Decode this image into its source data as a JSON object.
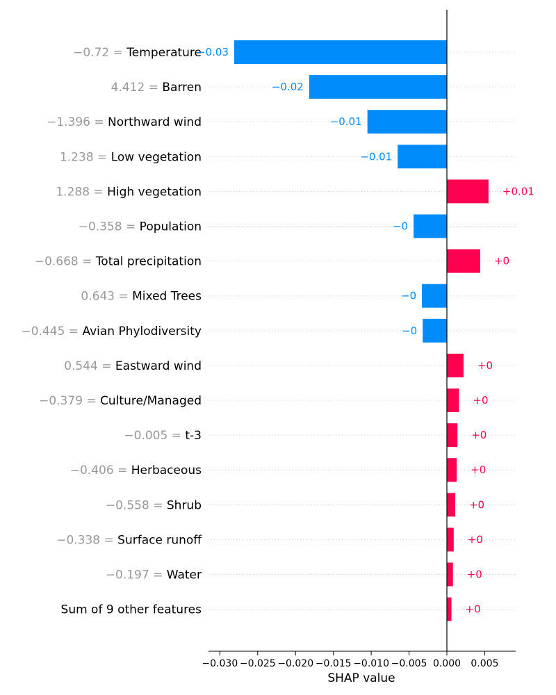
{
  "chart_data": {
    "type": "bar",
    "orientation": "horizontal",
    "xlabel": "SHAP value",
    "xlim": [
      -0.0315,
      0.0092
    ],
    "xticks": [
      -0.03,
      -0.025,
      -0.02,
      -0.015,
      -0.01,
      -0.005,
      0.0,
      0.005
    ],
    "xtick_labels": [
      "−0.030",
      "−0.025",
      "−0.020",
      "−0.015",
      "−0.010",
      "−0.005",
      "0.000",
      "0.005"
    ],
    "grid": "horizontal dotted row guides",
    "zero_line": true,
    "colors": {
      "negative": "#008bfb",
      "positive": "#ff0051",
      "feature_value": "#999999"
    },
    "features": [
      {
        "value": "−0.72",
        "sep": " = ",
        "name": "Temperature",
        "shap": -0.0281,
        "label": "−0.03"
      },
      {
        "value": "4.412",
        "sep": " = ",
        "name": "Barren",
        "shap": -0.0182,
        "label": "−0.02"
      },
      {
        "value": "−1.396",
        "sep": " = ",
        "name": "Northward wind",
        "shap": -0.0105,
        "label": "−0.01"
      },
      {
        "value": "1.238",
        "sep": " = ",
        "name": "Low vegetation",
        "shap": -0.0065,
        "label": "−0.01"
      },
      {
        "value": "1.288",
        "sep": " = ",
        "name": "High vegetation",
        "shap": 0.0055,
        "label": "+0.01"
      },
      {
        "value": "−0.358",
        "sep": " = ",
        "name": "Population",
        "shap": -0.0044,
        "label": "−0"
      },
      {
        "value": "−0.668",
        "sep": " = ",
        "name": "Total precipitation",
        "shap": 0.0044,
        "label": "+0"
      },
      {
        "value": "0.643",
        "sep": " = ",
        "name": "Mixed Trees",
        "shap": -0.0033,
        "label": "−0"
      },
      {
        "value": "−0.445",
        "sep": " = ",
        "name": "Avian Phylodiversity",
        "shap": -0.0032,
        "label": "−0"
      },
      {
        "value": "0.544",
        "sep": " = ",
        "name": "Eastward wind",
        "shap": 0.0022,
        "label": "+0"
      },
      {
        "value": "−0.379",
        "sep": " = ",
        "name": "Culture/Managed",
        "shap": 0.0016,
        "label": "+0"
      },
      {
        "value": "−0.005",
        "sep": " = ",
        "name": "t-3",
        "shap": 0.0014,
        "label": "+0"
      },
      {
        "value": "−0.406",
        "sep": " = ",
        "name": "Herbaceous",
        "shap": 0.0013,
        "label": "+0"
      },
      {
        "value": "−0.558",
        "sep": " = ",
        "name": "Shrub",
        "shap": 0.0011,
        "label": "+0"
      },
      {
        "value": "−0.338",
        "sep": " = ",
        "name": "Surface runoff",
        "shap": 0.0009,
        "label": "+0"
      },
      {
        "value": "−0.197",
        "sep": " = ",
        "name": "Water",
        "shap": 0.0008,
        "label": "+0"
      },
      {
        "value": "",
        "sep": "",
        "name": "Sum of 9 other features",
        "shap": 0.0006,
        "label": "+0"
      }
    ]
  }
}
